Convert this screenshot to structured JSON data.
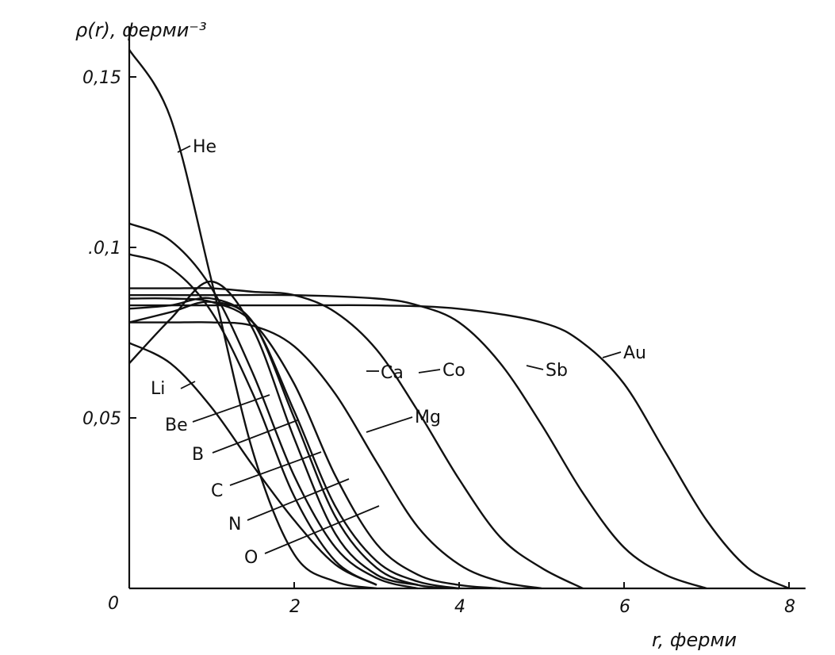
{
  "chart_data": {
    "type": "line",
    "ylabel": "ρ(r), ферми⁻³",
    "xlabel": "r, ферми",
    "xlim": [
      0,
      8.2
    ],
    "ylim": [
      0,
      0.16
    ],
    "x_ticks": [
      {
        "value": 2,
        "label": "2"
      },
      {
        "value": 4,
        "label": "4"
      },
      {
        "value": 6,
        "label": "6"
      },
      {
        "value": 8,
        "label": "8"
      }
    ],
    "y_ticks": [
      {
        "value": 0.05,
        "label": "0,05"
      },
      {
        "value": 0.1,
        "label": ".0,1"
      },
      {
        "value": 0.15,
        "label": "0,15"
      }
    ],
    "origin_label": "0",
    "grid": false,
    "series": [
      {
        "name": "He",
        "x": [
          0,
          0.5,
          1,
          1.5,
          2,
          2.5,
          3
        ],
        "y": [
          0.158,
          0.138,
          0.09,
          0.04,
          0.01,
          0.002,
          0
        ]
      },
      {
        "name": "Li",
        "x": [
          0,
          0.5,
          1,
          1.5,
          2,
          2.5,
          3
        ],
        "y": [
          0.072,
          0.066,
          0.053,
          0.036,
          0.02,
          0.007,
          0.001
        ]
      },
      {
        "name": "Be",
        "x": [
          0,
          0.5,
          1,
          1.5,
          2,
          2.5,
          3
        ],
        "y": [
          0.098,
          0.094,
          0.081,
          0.057,
          0.027,
          0.008,
          0.001
        ]
      },
      {
        "name": "B",
        "x": [
          0,
          0.5,
          1,
          1.5,
          2,
          2.5,
          3,
          3.5
        ],
        "y": [
          0.107,
          0.102,
          0.088,
          0.063,
          0.033,
          0.012,
          0.003,
          0
        ]
      },
      {
        "name": "C",
        "x": [
          0,
          0.5,
          1,
          1.5,
          2,
          2.5,
          3,
          3.5
        ],
        "y": [
          0.066,
          0.079,
          0.09,
          0.076,
          0.044,
          0.016,
          0.004,
          0.001
        ]
      },
      {
        "name": "N",
        "x": [
          0,
          0.5,
          1,
          1.5,
          2,
          2.5,
          3,
          3.5,
          4
        ],
        "y": [
          0.078,
          0.081,
          0.084,
          0.078,
          0.05,
          0.021,
          0.006,
          0.001,
          0
        ]
      },
      {
        "name": "O",
        "x": [
          0,
          0.5,
          1,
          1.5,
          2,
          2.5,
          3,
          3.5,
          4
        ],
        "y": [
          0.082,
          0.083,
          0.085,
          0.078,
          0.052,
          0.024,
          0.008,
          0.002,
          0
        ]
      },
      {
        "name": "Mg",
        "x": [
          0,
          0.5,
          1,
          1.5,
          2,
          2.5,
          3,
          3.5,
          4,
          4.5
        ],
        "y": [
          0.085,
          0.085,
          0.084,
          0.078,
          0.06,
          0.033,
          0.013,
          0.004,
          0.001,
          0
        ]
      },
      {
        "name": "Ca",
        "x": [
          0,
          0.5,
          1,
          1.5,
          2,
          2.5,
          3,
          3.5,
          4,
          4.5,
          5
        ],
        "y": [
          0.078,
          0.078,
          0.078,
          0.077,
          0.071,
          0.057,
          0.037,
          0.018,
          0.007,
          0.002,
          0
        ]
      },
      {
        "name": "Co",
        "x": [
          0,
          0.5,
          1,
          1.5,
          2,
          2.5,
          3,
          3.5,
          4,
          4.5,
          5,
          5.5
        ],
        "y": [
          0.088,
          0.088,
          0.088,
          0.087,
          0.086,
          0.081,
          0.07,
          0.052,
          0.032,
          0.015,
          0.006,
          0
        ]
      },
      {
        "name": "Sb",
        "x": [
          0,
          1,
          2,
          3,
          3.5,
          4,
          4.5,
          5,
          5.5,
          6,
          6.5,
          7
        ],
        "y": [
          0.086,
          0.086,
          0.086,
          0.085,
          0.083,
          0.078,
          0.066,
          0.048,
          0.028,
          0.012,
          0.004,
          0
        ]
      },
      {
        "name": "Au",
        "x": [
          0,
          1,
          2,
          3,
          4,
          5,
          5.5,
          6,
          6.5,
          7,
          7.5,
          8
        ],
        "y": [
          0.083,
          0.083,
          0.083,
          0.083,
          0.082,
          0.078,
          0.072,
          0.06,
          0.04,
          0.02,
          0.006,
          0
        ]
      }
    ]
  }
}
